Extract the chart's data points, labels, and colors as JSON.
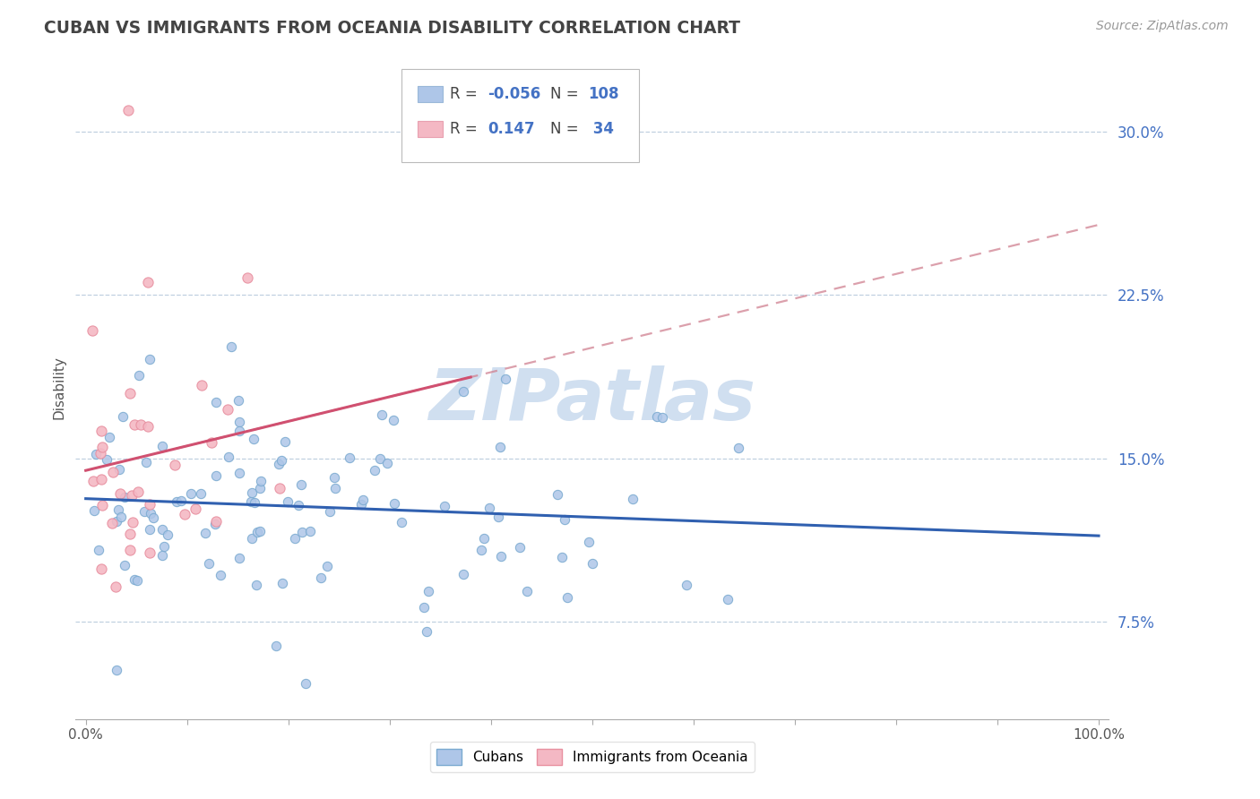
{
  "title": "CUBAN VS IMMIGRANTS FROM OCEANIA DISABILITY CORRELATION CHART",
  "source": "Source: ZipAtlas.com",
  "ylabel": "Disability",
  "xlim": [
    -0.01,
    1.01
  ],
  "ylim": [
    0.03,
    0.335
  ],
  "yticks": [
    0.075,
    0.15,
    0.225,
    0.3
  ],
  "yticklabels": [
    "7.5%",
    "15.0%",
    "22.5%",
    "30.0%"
  ],
  "cuban_color": "#aec6e8",
  "oceania_color": "#f4b8c4",
  "cuban_edge_color": "#7aaad0",
  "oceania_edge_color": "#e890a0",
  "cuban_line_color": "#3060b0",
  "oceania_line_color": "#d05070",
  "dash_line_color": "#d08090",
  "background_color": "#ffffff",
  "grid_color": "#c0d0e0",
  "legend_R_cubans": "-0.056",
  "legend_N_cubans": "108",
  "legend_R_oceania": "0.147",
  "legend_N_oceania": "34",
  "watermark": "ZIPatlas",
  "watermark_color": "#d0dff0",
  "ytick_color": "#4472c4",
  "xtick_color": "#555555",
  "ylabel_color": "#555555"
}
